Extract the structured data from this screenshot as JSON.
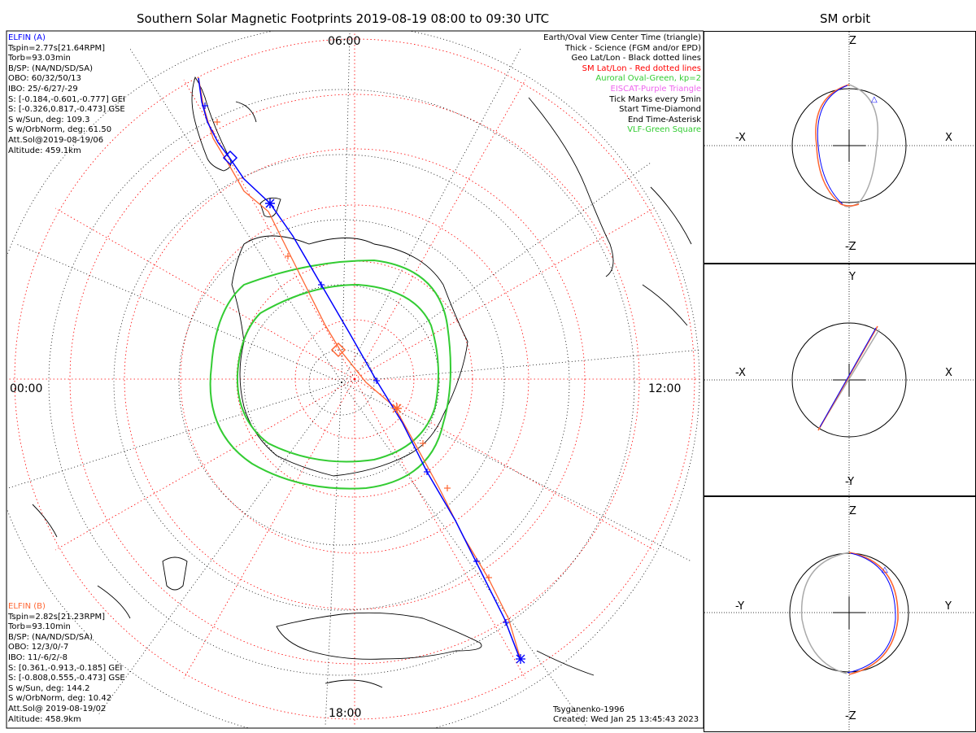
{
  "title": "Southern Solar Magnetic Footprints 2019-08-19 08:00 to 09:30 UTC",
  "orbit_title": "SM orbit",
  "time_labels": {
    "top": "06:00",
    "left": "00:00",
    "right": "12:00",
    "bottom": "18:00"
  },
  "elfin_a": {
    "name": "ELFIN (A)",
    "color": "#0000ff",
    "lines": [
      "Tspin=2.77s[21.64RPM]",
      "Torb=93.03min",
      "B/SP: (NA/ND/SD/SA)",
      "OBO: 60/32/50/13",
      "IBO: 25/-6/27/-29",
      "S: [-0.184,-0.601,-0.777] GEI",
      "S: [-0.326,0.817,-0.473] GSE",
      "S w/Sun, deg: 109.3",
      "S w/OrbNorm, deg: 61.50",
      "Att.Sol@2019-08-19/06",
      "Altitude: 459.1km"
    ]
  },
  "elfin_b": {
    "name": "ELFIN (B)",
    "color": "#ff6633",
    "lines": [
      "Tspin=2.82s[21.23RPM]",
      "Torb=93.10min",
      "B/SP: (NA/ND/SD/SA)",
      "OBO: 12/3/0/-7",
      "IBO: 11/-6/2/-8",
      "S: [0.361,-0.913,-0.185] GEI",
      "S: [-0.808,0.555,-0.473] GSE",
      "S w/Sun, deg: 144.2",
      "S w/OrbNorm, deg: 10.42",
      "Att.Sol@ 2019-08-19/02",
      "Altitude: 458.9km"
    ]
  },
  "legend": [
    {
      "text": "Earth/Oval View Center Time (triangle)",
      "color": "#000000"
    },
    {
      "text": "Thick - Science (FGM and/or EPD)",
      "color": "#000000"
    },
    {
      "text": "Geo Lat/Lon - Black dotted lines",
      "color": "#000000"
    },
    {
      "text": "SM Lat/Lon - Red dotted lines",
      "color": "#ff0000"
    },
    {
      "text": "Auroral Oval-Green, kp=2",
      "color": "#33cc33"
    },
    {
      "text": "EISCAT-Purple Triangle",
      "color": "#ee66ee"
    },
    {
      "text": "Tick Marks every 5min",
      "color": "#000000"
    },
    {
      "text": "Start Time-Diamond",
      "color": "#000000"
    },
    {
      "text": "End Time-Asterisk",
      "color": "#000000"
    },
    {
      "text": "VLF-Green Square",
      "color": "#33cc33"
    }
  ],
  "model_label": "Tsyganenko-1996",
  "created_label": "Created: Wed Jan 25 13:45:43 2023",
  "orbit_panels": [
    {
      "top": "Z",
      "bottom": "-Z",
      "left": "-X",
      "right": "X"
    },
    {
      "top": "Y",
      "bottom": "-Y",
      "left": "-X",
      "right": "X"
    },
    {
      "top": "Z",
      "bottom": "-Z",
      "left": "-Y",
      "right": "Y"
    }
  ],
  "colors": {
    "sm_grid": "#ff0000",
    "geo_grid": "#000000",
    "oval": "#33cc33",
    "probe_a": "#0000ff",
    "probe_b": "#ff6633",
    "orbit_gray": "#aaaaaa"
  }
}
